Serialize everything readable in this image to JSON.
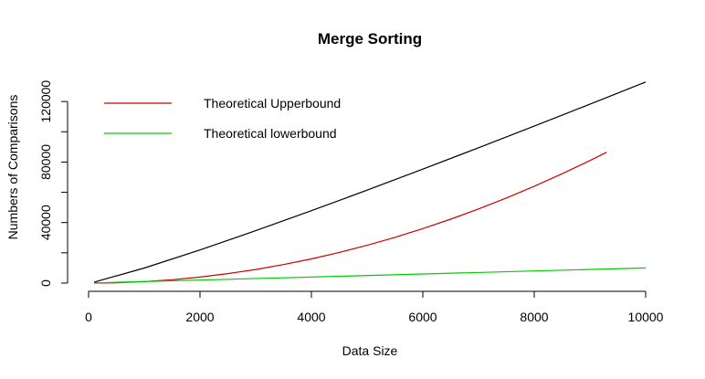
{
  "chart_data": {
    "type": "line",
    "title": "Merge Sorting",
    "xlabel": "Data Size",
    "ylabel": "Numbers of Comparisons",
    "xlim": [
      0,
      10000
    ],
    "ylim": [
      0,
      120000
    ],
    "xticks": [
      0,
      2000,
      4000,
      6000,
      8000,
      10000
    ],
    "yticks": [
      0,
      40000,
      80000,
      120000
    ],
    "grid": false,
    "legend_position": "top-left",
    "series": [
      {
        "name": "Theoretical Upperbound",
        "color": "#cc0000",
        "x": [
          100,
          500,
          1000,
          1500,
          2000,
          2500,
          3000,
          3500,
          4000,
          4500,
          5000,
          5500,
          6000,
          6500,
          7000,
          7500,
          8000,
          8500,
          9000,
          9300
        ],
        "y": [
          10,
          250,
          1000,
          2250,
          4000,
          6250,
          9000,
          12250,
          16000,
          20250,
          25000,
          30250,
          36000,
          42250,
          49000,
          56250,
          64000,
          72250,
          81000,
          86490
        ]
      },
      {
        "name": "Theoretical lowerbound",
        "color": "#00cc00",
        "x": [
          100,
          10000
        ],
        "y": [
          100,
          10000
        ]
      },
      {
        "color": "#000000",
        "x": [
          100,
          1000,
          2000,
          3000,
          4000,
          5000,
          6000,
          7000,
          8000,
          9000,
          10000
        ],
        "y": [
          664,
          9966,
          21932,
          34652,
          47863,
          61439,
          75304,
          89412,
          103726,
          118221,
          132877
        ]
      }
    ]
  }
}
